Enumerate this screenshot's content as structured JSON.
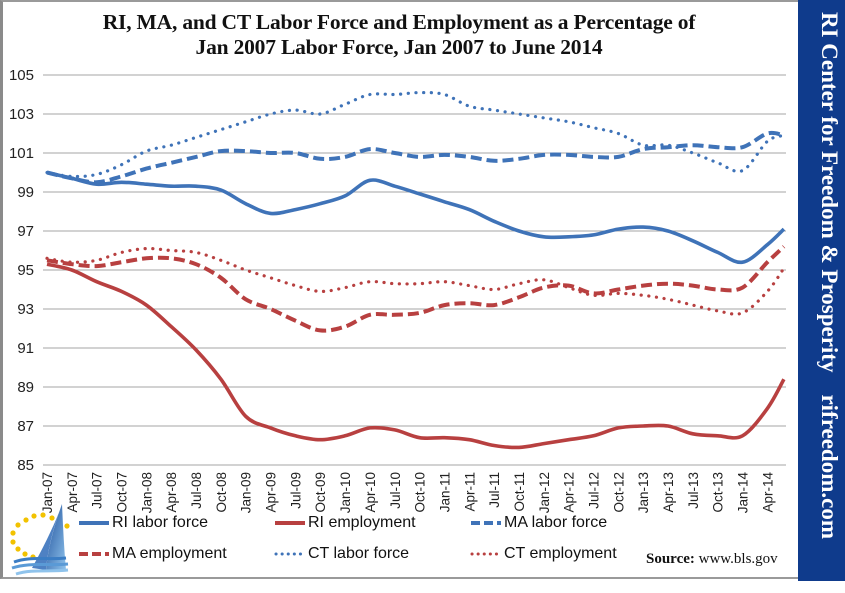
{
  "chart_data": {
    "type": "line",
    "title": "RI, MA, and CT Labor Force and Employment as a Percentage of Jan 2007 Labor Force, Jan 2007 to June 2014",
    "title_lines": [
      "RI, MA, and CT Labor Force and Employment as a Percentage of",
      "Jan 2007 Labor Force, Jan 2007 to June 2014"
    ],
    "xlabel": "",
    "ylabel": "",
    "ylim": [
      85,
      105
    ],
    "yticks": [
      85,
      87,
      89,
      91,
      93,
      95,
      97,
      99,
      101,
      103,
      105
    ],
    "grid": true,
    "legend_position": "bottom",
    "x_tick_labels": [
      "Jan-07",
      "Apr-07",
      "Jul-07",
      "Oct-07",
      "Jan-08",
      "Apr-08",
      "Jul-08",
      "Oct-08",
      "Jan-09",
      "Apr-09",
      "Jul-09",
      "Oct-09",
      "Jan-10",
      "Apr-10",
      "Jul-10",
      "Oct-10",
      "Jan-11",
      "Apr-11",
      "Jul-11",
      "Oct-11",
      "Jan-12",
      "Apr-12",
      "Jul-12",
      "Oct-12",
      "Jan-13",
      "Apr-13",
      "Jul-13",
      "Oct-13",
      "Jan-14",
      "Apr-14"
    ],
    "x": [
      "Jan-07",
      "Apr-07",
      "Jul-07",
      "Oct-07",
      "Jan-08",
      "Apr-08",
      "Jul-08",
      "Oct-08",
      "Jan-09",
      "Apr-09",
      "Jul-09",
      "Oct-09",
      "Jan-10",
      "Apr-10",
      "Jul-10",
      "Oct-10",
      "Jan-11",
      "Apr-11",
      "Jul-11",
      "Oct-11",
      "Jan-12",
      "Apr-12",
      "Jul-12",
      "Oct-12",
      "Jan-13",
      "Apr-13",
      "Jul-13",
      "Oct-13",
      "Jan-14",
      "Apr-14",
      "Jun-14"
    ],
    "series": [
      {
        "name": "RI labor force",
        "color": "#3f73b8",
        "style": "solid",
        "values": [
          100.0,
          99.7,
          99.4,
          99.5,
          99.4,
          99.3,
          99.3,
          99.1,
          98.4,
          97.9,
          98.1,
          98.4,
          98.8,
          99.6,
          99.3,
          98.9,
          98.5,
          98.1,
          97.5,
          97.0,
          96.7,
          96.7,
          96.8,
          97.1,
          97.2,
          97.0,
          96.5,
          95.9,
          95.4,
          96.3,
          97.1
        ]
      },
      {
        "name": "RI employment",
        "color": "#b84040",
        "style": "solid",
        "values": [
          95.3,
          95.0,
          94.4,
          93.9,
          93.2,
          92.1,
          90.9,
          89.4,
          87.5,
          86.9,
          86.5,
          86.3,
          86.5,
          86.9,
          86.8,
          86.4,
          86.4,
          86.3,
          86.0,
          85.9,
          86.1,
          86.3,
          86.5,
          86.9,
          87.0,
          87.0,
          86.6,
          86.5,
          86.5,
          87.9,
          89.4
        ]
      },
      {
        "name": "MA labor force",
        "color": "#3f73b8",
        "style": "dashed",
        "values": [
          100.0,
          99.7,
          99.5,
          99.8,
          100.2,
          100.5,
          100.8,
          101.1,
          101.1,
          101.0,
          101.0,
          100.7,
          100.8,
          101.2,
          101.0,
          100.8,
          100.9,
          100.8,
          100.6,
          100.7,
          100.9,
          100.9,
          100.8,
          100.8,
          101.2,
          101.3,
          101.4,
          101.3,
          101.3,
          102.0,
          101.9
        ]
      },
      {
        "name": "MA employment",
        "color": "#b84040",
        "style": "dashed",
        "values": [
          95.5,
          95.3,
          95.2,
          95.4,
          95.6,
          95.6,
          95.3,
          94.6,
          93.5,
          93.0,
          92.4,
          91.9,
          92.1,
          92.7,
          92.7,
          92.8,
          93.2,
          93.3,
          93.2,
          93.6,
          94.1,
          94.2,
          93.8,
          94.0,
          94.2,
          94.3,
          94.2,
          94.0,
          94.1,
          95.4,
          96.2
        ]
      },
      {
        "name": "CT labor force",
        "color": "#3f73b8",
        "style": "dotted",
        "values": [
          100.0,
          99.8,
          99.9,
          100.4,
          101.1,
          101.4,
          101.8,
          102.2,
          102.6,
          103.0,
          103.2,
          103.0,
          103.5,
          104.0,
          104.0,
          104.1,
          104.0,
          103.4,
          103.2,
          103.0,
          102.8,
          102.6,
          102.3,
          102.0,
          101.4,
          101.4,
          101.0,
          100.5,
          100.1,
          101.6,
          101.9
        ]
      },
      {
        "name": "CT employment",
        "color": "#b84040",
        "style": "dotted",
        "values": [
          95.6,
          95.4,
          95.5,
          95.9,
          96.1,
          96.0,
          95.9,
          95.5,
          95.0,
          94.6,
          94.2,
          93.9,
          94.1,
          94.4,
          94.3,
          94.3,
          94.4,
          94.2,
          94.0,
          94.3,
          94.5,
          94.1,
          93.7,
          93.8,
          93.7,
          93.5,
          93.2,
          92.9,
          92.8,
          93.9,
          95.1
        ]
      }
    ]
  },
  "legend": {
    "items": [
      {
        "label": "RI labor force"
      },
      {
        "label": "RI employment"
      },
      {
        "label": "MA labor force"
      },
      {
        "label": "MA employment"
      },
      {
        "label": "CT labor force"
      },
      {
        "label": "CT employment"
      }
    ]
  },
  "source": {
    "label": "Source:",
    "value": "www.bls.gov"
  },
  "sidebar": {
    "org_name": "RI Center for Freedom & Prosperity",
    "website": "rifreedom.com"
  },
  "colors": {
    "blue": "#3f73b8",
    "red": "#b84040",
    "sidebar_bg": "#0f3b8c",
    "grid": "#a6a6a6"
  }
}
